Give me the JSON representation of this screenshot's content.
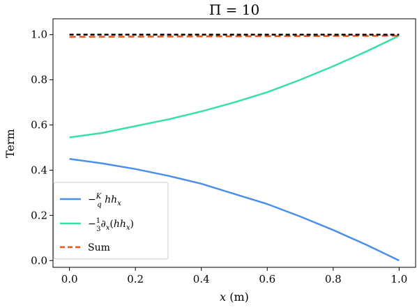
{
  "chart_data": {
    "type": "line",
    "title": "Π = 10",
    "xlabel": "x (m)",
    "ylabel": "Term",
    "xlim": [
      -0.05,
      1.05
    ],
    "ylim": [
      -0.03,
      1.07
    ],
    "xticks": [
      0.0,
      0.2,
      0.4,
      0.6,
      0.8,
      1.0
    ],
    "xtick_labels": [
      "0.0",
      "0.2",
      "0.4",
      "0.6",
      "0.8",
      "1.0"
    ],
    "yticks": [
      0.0,
      0.2,
      0.4,
      0.6,
      0.8,
      1.0
    ],
    "ytick_labels": [
      "0.0",
      "0.2",
      "0.4",
      "0.6",
      "0.8",
      "1.0"
    ],
    "grid": false,
    "legend": "lower-left",
    "series": [
      {
        "name": "−(K/q) h hₓ",
        "color": "#4a90e8",
        "style": "solid",
        "x": [
          0.0,
          0.1,
          0.2,
          0.3,
          0.4,
          0.5,
          0.6,
          0.7,
          0.8,
          0.9,
          1.0
        ],
        "y": [
          0.45,
          0.43,
          0.405,
          0.375,
          0.34,
          0.295,
          0.25,
          0.195,
          0.135,
          0.07,
          0.0
        ]
      },
      {
        "name": "−(1/3) ∂ₓ(h hₓ)",
        "color": "#36e0a6",
        "style": "solid",
        "x": [
          0.0,
          0.1,
          0.2,
          0.3,
          0.4,
          0.5,
          0.6,
          0.7,
          0.8,
          0.9,
          1.0
        ],
        "y": [
          0.545,
          0.565,
          0.595,
          0.625,
          0.66,
          0.7,
          0.745,
          0.8,
          0.86,
          0.925,
          0.995
        ]
      },
      {
        "name": "Sum",
        "color": "#e8531a",
        "style": "dashed",
        "x": [
          0.0,
          1.0
        ],
        "y": [
          0.99,
          0.995
        ]
      },
      {
        "name": "",
        "color": "#000000",
        "style": "dashed",
        "x": [
          0.0,
          1.0
        ],
        "y": [
          1.0,
          1.0
        ]
      }
    ]
  }
}
